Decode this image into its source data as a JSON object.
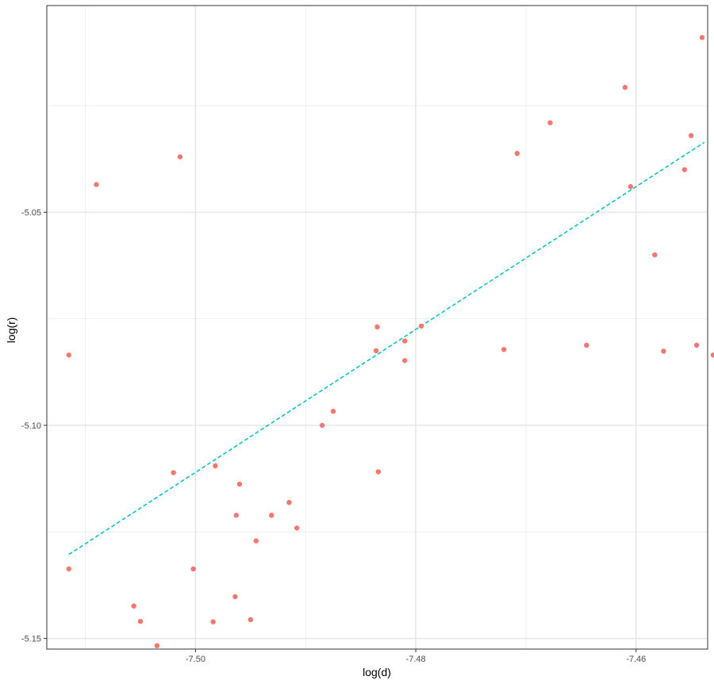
{
  "chart_data": {
    "type": "scatter",
    "title": "",
    "xlabel": "log(d)",
    "ylabel": "log(r)",
    "xlim": [
      -7.5135,
      -7.4535
    ],
    "ylim": [
      -5.1525,
      -5.0015
    ],
    "x_ticks": [
      -7.5,
      -7.48,
      -7.46
    ],
    "x_tick_labels": [
      "-7.50",
      "-7.48",
      "-7.46"
    ],
    "y_ticks": [
      -5.05,
      -5.1,
      -5.15
    ],
    "y_tick_labels": [
      "-5.05",
      "-5.10",
      "-5.15"
    ],
    "grid": true,
    "legend": "none",
    "points": [
      {
        "x": -7.5115,
        "y": -5.0835
      },
      {
        "x": -7.509,
        "y": -5.0435
      },
      {
        "x": -7.5115,
        "y": -5.1337
      },
      {
        "x": -7.5056,
        "y": -5.1424
      },
      {
        "x": -7.505,
        "y": -5.146
      },
      {
        "x": -7.502,
        "y": -5.1111
      },
      {
        "x": -7.5014,
        "y": -5.037
      },
      {
        "x": -7.5002,
        "y": -5.1337
      },
      {
        "x": -7.5035,
        "y": -5.1517
      },
      {
        "x": -7.4982,
        "y": -5.1095
      },
      {
        "x": -7.4984,
        "y": -5.1461
      },
      {
        "x": -7.4963,
        "y": -5.1211
      },
      {
        "x": -7.4945,
        "y": -5.1271
      },
      {
        "x": -7.4964,
        "y": -5.1402
      },
      {
        "x": -7.495,
        "y": -5.1456
      },
      {
        "x": -7.496,
        "y": -5.1138
      },
      {
        "x": -7.4931,
        "y": -5.1211
      },
      {
        "x": -7.4915,
        "y": -5.1181
      },
      {
        "x": -7.4908,
        "y": -5.1241
      },
      {
        "x": -7.4885,
        "y": -5.1
      },
      {
        "x": -7.4875,
        "y": -5.0967
      },
      {
        "x": -7.4836,
        "y": -5.0825
      },
      {
        "x": -7.4835,
        "y": -5.0769
      },
      {
        "x": -7.4834,
        "y": -5.1109
      },
      {
        "x": -7.481,
        "y": -5.0802
      },
      {
        "x": -7.481,
        "y": -5.0848
      },
      {
        "x": -7.4795,
        "y": -5.0767
      },
      {
        "x": -7.472,
        "y": -5.0822
      },
      {
        "x": -7.4708,
        "y": -5.0362
      },
      {
        "x": -7.4678,
        "y": -5.029
      },
      {
        "x": -7.4645,
        "y": -5.0812
      },
      {
        "x": -7.461,
        "y": -5.0207
      },
      {
        "x": -7.4605,
        "y": -5.044
      },
      {
        "x": -7.4583,
        "y": -5.06
      },
      {
        "x": -7.4575,
        "y": -5.0826
      },
      {
        "x": -7.4556,
        "y": -5.04
      },
      {
        "x": -7.455,
        "y": -5.032
      },
      {
        "x": -7.454,
        "y": -5.009
      },
      {
        "x": -7.4545,
        "y": -5.0812
      },
      {
        "x": -7.453,
        "y": -5.0835
      }
    ],
    "fit_line": {
      "x": [
        -7.5115,
        -7.4538
      ],
      "y": [
        -5.1303,
        -5.0336
      ]
    },
    "point_color": "#f8766d",
    "line_color": "#00bfc4",
    "grid_color": "#ebebeb",
    "border_color": "#333333"
  }
}
